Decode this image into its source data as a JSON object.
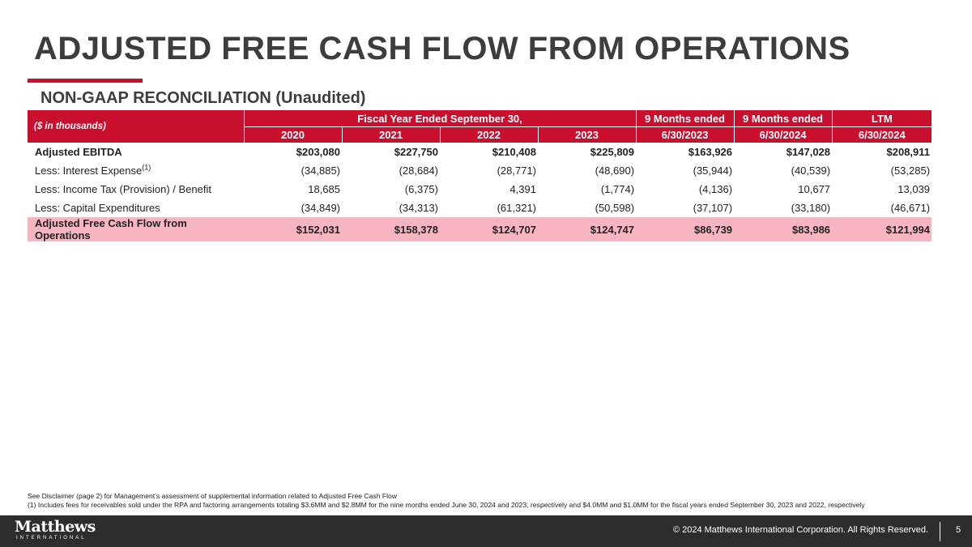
{
  "title": "ADJUSTED FREE CASH FLOW FROM OPERATIONS",
  "subtitle": "NON-GAAP RECONCILIATION (Unaudited)",
  "table": {
    "units_label": "($ in thousands)",
    "group_headers": {
      "fiscal": "Fiscal Year Ended September 30,",
      "nine_months_2023": "9 Months ended",
      "nine_months_2024": "9 Months ended",
      "ltm": "LTM"
    },
    "column_headers": [
      "2020",
      "2021",
      "2022",
      "2023",
      "6/30/2023",
      "6/30/2024",
      "6/30/2024"
    ],
    "rows": [
      {
        "label": "Adjusted EBITDA",
        "values": [
          "$203,080",
          "$227,750",
          "$210,408",
          "$225,809",
          "$163,926",
          "$147,028",
          "$208,911"
        ]
      },
      {
        "label": "Less: Interest Expense",
        "sup": "(1)",
        "values": [
          "(34,885)",
          "(28,684)",
          "(28,771)",
          "(48,690)",
          "(35,944)",
          "(40,539)",
          "(53,285)"
        ]
      },
      {
        "label": "Less: Income Tax (Provision) / Benefit",
        "values": [
          "18,685",
          "(6,375)",
          "4,391",
          "(1,774)",
          "(4,136)",
          "10,677",
          "13,039"
        ]
      },
      {
        "label": "Less: Capital Expenditures",
        "values": [
          "(34,849)",
          "(34,313)",
          "(61,321)",
          "(50,598)",
          "(37,107)",
          "(33,180)",
          "(46,671)"
        ]
      },
      {
        "label": "Adjusted Free Cash Flow from Operations",
        "values": [
          "$152,031",
          "$158,378",
          "$124,707",
          "$124,747",
          "$86,739",
          "$83,986",
          "$121,994"
        ]
      }
    ]
  },
  "footnotes": [
    "See Disclaimer (page 2) for Management’s assessment of supplemental information related to Adjusted Free Cash Flow",
    "(1) Includes fees for receivables sold under the RPA and factoring arrangements totaling $3.6MM and $2.8MM for the nine months ended June 30, 2024 and 2023, respectively and $4.0MM and $1.0MM for the fiscal years ended September 30, 2023 and 2022, respectively"
  ],
  "footer": {
    "logo_main": "Matthews",
    "logo_sub": "INTERNATIONAL",
    "copyright": "© 2024 Matthews International Corporation. All Rights Reserved.",
    "page_number": "5"
  },
  "colors": {
    "accent": "#c8102e",
    "total_row": "#f7b5c1",
    "footer_bg": "#2d2d2d",
    "title": "#3d3d3d"
  }
}
